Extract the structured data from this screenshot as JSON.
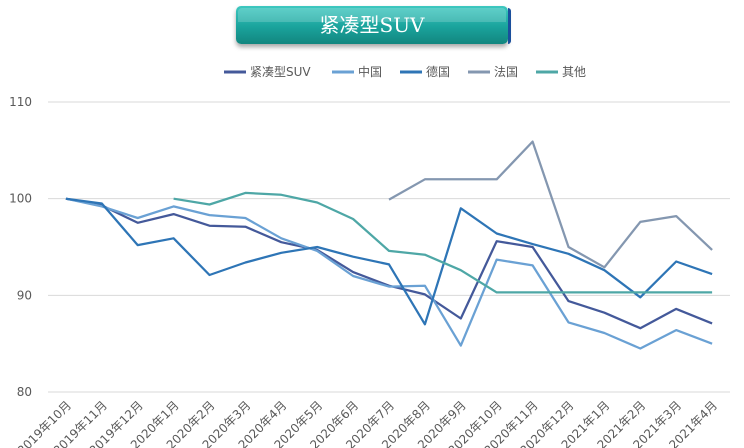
{
  "chart_data": {
    "type": "line",
    "title": "紧凑型SUV",
    "categories": [
      "2019年10月",
      "2019年11月",
      "2019年12月",
      "2020年1月",
      "2020年2月",
      "2020年3月",
      "2020年4月",
      "2020年5月",
      "2020年6月",
      "2020年7月",
      "2020年8月",
      "2020年9月",
      "2020年10月",
      "2020年11月",
      "2020年12月",
      "2021年1月",
      "2021年2月",
      "2021年3月",
      "2021年4月"
    ],
    "ylim": [
      80,
      110
    ],
    "yticks": [
      80,
      90,
      100,
      110
    ],
    "grid": true,
    "legend_position": "top",
    "series": [
      {
        "name": "紧凑型SUV",
        "color": "#44599a",
        "values": [
          100,
          99.3,
          97.5,
          98.4,
          97.2,
          97.1,
          95.5,
          94.7,
          92.4,
          91.0,
          90.1,
          87.6,
          95.6,
          95.0,
          89.4,
          88.2,
          86.6,
          88.6,
          87.1
        ]
      },
      {
        "name": "中国",
        "color": "#6aa1d4",
        "values": [
          100,
          99.2,
          98.0,
          99.2,
          98.3,
          98.0,
          95.9,
          94.6,
          92.0,
          90.9,
          91.0,
          84.8,
          93.7,
          93.1,
          87.2,
          86.1,
          84.5,
          86.4,
          85.0
        ]
      },
      {
        "name": "德国",
        "color": "#2e75b6",
        "values": [
          100,
          99.5,
          95.2,
          95.9,
          92.1,
          93.4,
          94.4,
          95.0,
          94.0,
          93.2,
          87.0,
          99.0,
          96.4,
          95.3,
          94.3,
          92.6,
          89.8,
          93.5,
          92.2
        ]
      },
      {
        "name": "法国",
        "color": "#8497b0",
        "values": [
          null,
          null,
          null,
          null,
          null,
          null,
          null,
          null,
          null,
          99.9,
          102.0,
          102.0,
          102.0,
          105.9,
          95.0,
          92.9,
          97.6,
          98.2,
          94.7
        ]
      },
      {
        "name": "其他",
        "color": "#4ea7a6",
        "values": [
          null,
          null,
          null,
          100.0,
          99.4,
          100.6,
          100.4,
          99.6,
          97.9,
          94.6,
          94.2,
          92.6,
          90.3,
          90.3,
          90.3,
          90.3,
          90.3,
          90.3,
          90.3
        ]
      }
    ]
  }
}
